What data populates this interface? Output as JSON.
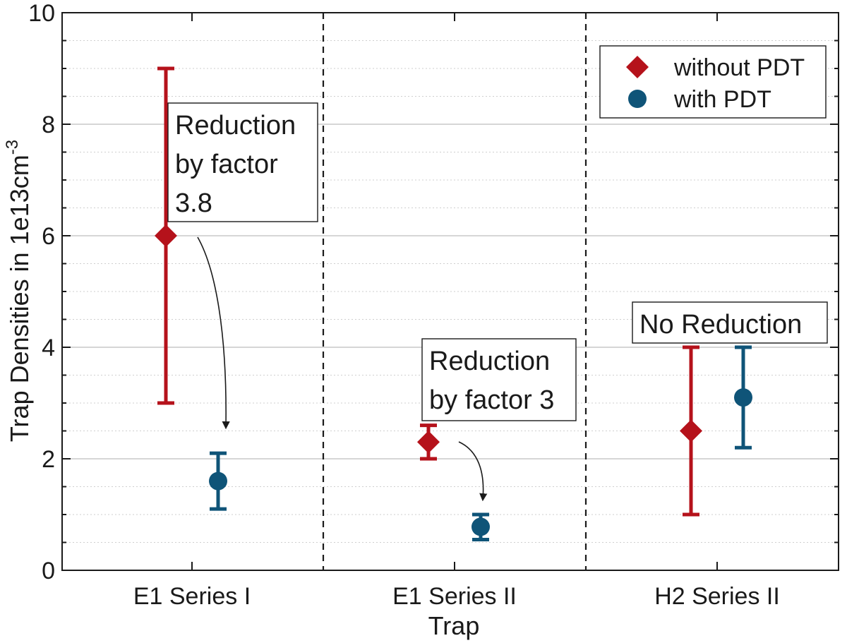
{
  "chart_data": {
    "type": "scatter",
    "xlabel": "Trap",
    "ylabel": "Trap Densities in 1e13cm",
    "ylabel_superscript": "-3",
    "ylim": [
      0,
      10
    ],
    "yticks": [
      "0",
      "2",
      "4",
      "6",
      "8",
      "10"
    ],
    "grid": true,
    "categories": [
      "E1 Series I",
      "E1 Series II",
      "H2 Series II"
    ],
    "legend_position": "top-right",
    "series": [
      {
        "name": "without PDT",
        "marker": "diamond",
        "color": "#b5121b",
        "points": [
          {
            "category": "E1 Series I",
            "y": 6.0,
            "err_low": 3.0,
            "err_high": 9.0
          },
          {
            "category": "E1 Series II",
            "y": 2.3,
            "err_low": 2.0,
            "err_high": 2.6
          },
          {
            "category": "H2 Series II",
            "y": 2.5,
            "err_low": 1.0,
            "err_high": 4.0
          }
        ]
      },
      {
        "name": "with PDT",
        "marker": "circle",
        "color": "#0f5478",
        "points": [
          {
            "category": "E1 Series I",
            "y": 1.6,
            "err_low": 1.1,
            "err_high": 2.1
          },
          {
            "category": "E1 Series II",
            "y": 0.78,
            "err_low": 0.55,
            "err_high": 1.0
          },
          {
            "category": "H2 Series II",
            "y": 3.1,
            "err_low": 2.2,
            "err_high": 4.0
          }
        ]
      }
    ],
    "annotations": [
      {
        "lines": [
          "Reduction",
          "by factor",
          "3.8"
        ],
        "category": "E1 Series I"
      },
      {
        "lines": [
          "Reduction",
          "by factor 3"
        ],
        "category": "E1 Series II"
      },
      {
        "lines": [
          "No Reduction"
        ],
        "category": "H2 Series II"
      }
    ]
  }
}
